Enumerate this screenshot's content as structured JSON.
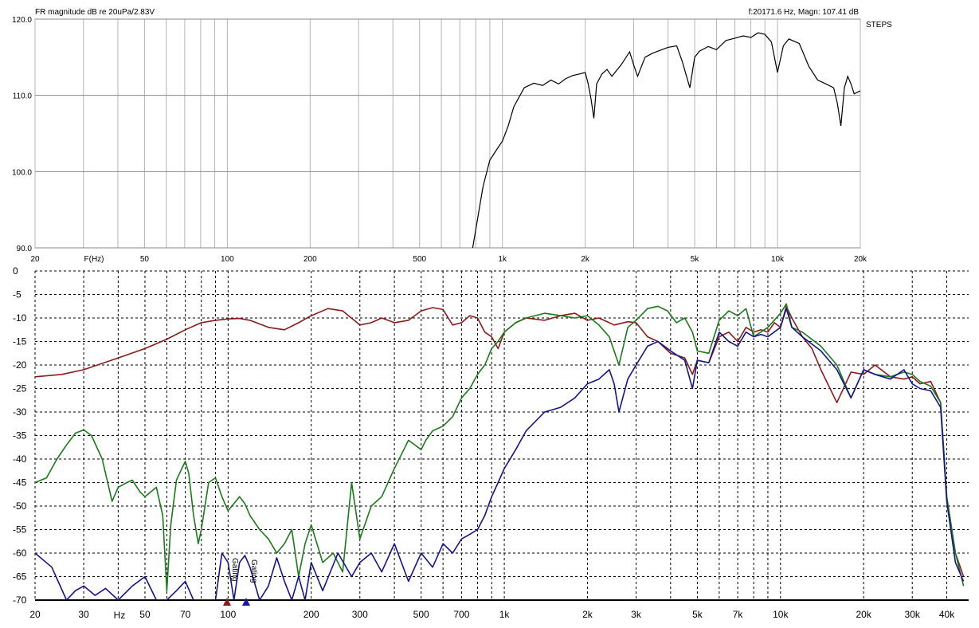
{
  "top_panel": {
    "title": "FR magnitude  dB re 20uPa/2.83V",
    "readout": "f:20171.6 Hz, Magn: 107.41 dB",
    "side_label": "STEPS",
    "x_unit_label": "F(Hz)"
  },
  "bottom_panel": {
    "x_unit_label": "Hz",
    "marker_labels": [
      "Gating",
      "Gating"
    ]
  },
  "colors": {
    "top_trace": "#000000",
    "red": "#8b1a1a",
    "green": "#1a7a1a",
    "blue": "#14148c",
    "grid_top": "#b4b4b4",
    "marker": "#1a1aa0"
  },
  "chart_data": [
    {
      "type": "line",
      "title": "FR magnitude  dB re 20uPa/2.83V",
      "xscale": "log",
      "xlim": [
        20,
        20000
      ],
      "ylim": [
        90,
        120
      ],
      "x_ticks": [
        20,
        50,
        100,
        200,
        500,
        1000,
        2000,
        5000,
        10000,
        20000
      ],
      "x_tick_labels": [
        "20",
        "50",
        "100",
        "200",
        "500",
        "1k",
        "2k",
        "5k",
        "10k",
        "20k"
      ],
      "y_ticks": [
        90,
        100,
        110,
        120
      ],
      "y_tick_labels": [
        "90.0",
        "100.0",
        "110.0",
        "120.0"
      ],
      "series": [
        {
          "color": "#000000",
          "x": [
            780,
            850,
            900,
            950,
            1000,
            1050,
            1100,
            1200,
            1300,
            1400,
            1500,
            1600,
            1700,
            1800,
            1900,
            2000,
            2050,
            2100,
            2150,
            2200,
            2300,
            2400,
            2500,
            2700,
            2900,
            3000,
            3100,
            3300,
            3500,
            3800,
            4000,
            4300,
            4500,
            4800,
            5000,
            5200,
            5600,
            6000,
            6500,
            7000,
            7500,
            8000,
            8500,
            9000,
            9500,
            10000,
            10500,
            11000,
            12000,
            13000,
            14000,
            15000,
            16000,
            16500,
            17000,
            17500,
            18000,
            18500,
            19000,
            20000
          ],
          "y": [
            90.0,
            98.0,
            101.5,
            102.8,
            104.0,
            106.0,
            108.5,
            111.0,
            111.6,
            111.3,
            112.0,
            111.5,
            112.2,
            112.6,
            112.8,
            113.0,
            111.5,
            109.5,
            107.0,
            111.5,
            112.8,
            113.4,
            112.5,
            114.0,
            115.7,
            114.0,
            112.5,
            115.0,
            115.5,
            116.0,
            116.3,
            116.5,
            114.5,
            111.0,
            115.0,
            115.8,
            116.4,
            116.0,
            117.2,
            117.5,
            117.8,
            117.6,
            118.2,
            118.0,
            117.0,
            113.0,
            116.5,
            117.4,
            116.8,
            113.8,
            112.0,
            111.5,
            111.0,
            109.0,
            106.0,
            111.0,
            112.5,
            111.5,
            110.2,
            110.6
          ]
        }
      ]
    },
    {
      "type": "line",
      "xscale": "log",
      "xlim": [
        20,
        48000
      ],
      "ylim": [
        -70,
        0
      ],
      "x_ticks": [
        20,
        30,
        50,
        70,
        100,
        200,
        300,
        500,
        700,
        1000,
        2000,
        3000,
        5000,
        7000,
        10000,
        20000,
        30000,
        40000
      ],
      "x_tick_labels": [
        "20",
        "30",
        "50",
        "70",
        "100",
        "200",
        "300",
        "500",
        "700",
        "1k",
        "2k",
        "3k",
        "5k",
        "7k",
        "10k",
        "20k",
        "30k",
        "40k"
      ],
      "y_ticks": [
        0,
        -5,
        -10,
        -15,
        -20,
        -25,
        -30,
        -35,
        -40,
        -45,
        -50,
        -55,
        -60,
        -65,
        -70
      ],
      "y_tick_labels": [
        "0",
        "-5",
        "-10",
        "-15",
        "-20",
        "-25",
        "-30",
        "-35",
        "-40",
        "-45",
        "-50",
        "-55",
        "-60",
        "-65",
        "-70"
      ],
      "series": [
        {
          "color": "#8b1a1a",
          "x": [
            20,
            25,
            30,
            40,
            50,
            60,
            70,
            80,
            90,
            100,
            110,
            120,
            140,
            160,
            180,
            200,
            230,
            260,
            300,
            330,
            360,
            400,
            450,
            500,
            550,
            600,
            650,
            700,
            750,
            800,
            850,
            900,
            950,
            1000,
            1100,
            1200,
            1400,
            1600,
            1800,
            2000,
            2200,
            2500,
            2800,
            3000,
            3300,
            3600,
            4000,
            4500,
            4800,
            5000,
            5500,
            6000,
            6500,
            7000,
            7500,
            8000,
            8500,
            9000,
            9500,
            10000,
            10500,
            11000,
            12000,
            13000,
            14000,
            16000,
            18000,
            20000,
            22000,
            25000,
            28000,
            30000,
            32000,
            35000,
            38000,
            40000,
            43000,
            46000
          ],
          "y": [
            -22.5,
            -22.0,
            -21.0,
            -18.5,
            -16.5,
            -14.5,
            -12.5,
            -11.0,
            -10.5,
            -10.2,
            -10.1,
            -10.5,
            -12.0,
            -12.5,
            -11.0,
            -9.5,
            -8.0,
            -8.5,
            -11.5,
            -11.0,
            -10.0,
            -11.0,
            -10.5,
            -8.5,
            -7.8,
            -8.2,
            -11.5,
            -11.0,
            -9.5,
            -10.0,
            -13.0,
            -14.0,
            -16.5,
            -13.0,
            -11.0,
            -10.0,
            -10.5,
            -9.5,
            -9.0,
            -10.5,
            -10.0,
            -11.5,
            -10.8,
            -11.0,
            -14.0,
            -15.0,
            -17.5,
            -18.5,
            -22.0,
            -19.0,
            -19.5,
            -14.0,
            -13.0,
            -15.0,
            -12.0,
            -13.0,
            -12.5,
            -13.0,
            -11.0,
            -12.0,
            -7.5,
            -10.0,
            -14.0,
            -16.5,
            -21.0,
            -28.0,
            -21.5,
            -22.0,
            -20.0,
            -22.5,
            -23.0,
            -22.5,
            -24.0,
            -23.5,
            -28.0,
            -48.0,
            -60.0,
            -65.0
          ]
        },
        {
          "color": "#1a7a1a",
          "x": [
            20,
            22,
            24,
            26,
            28,
            30,
            32,
            35,
            38,
            40,
            43,
            45,
            48,
            50,
            55,
            58,
            60,
            62,
            65,
            68,
            70,
            72,
            75,
            78,
            80,
            85,
            90,
            95,
            100,
            110,
            115,
            120,
            130,
            140,
            150,
            160,
            170,
            180,
            190,
            200,
            220,
            240,
            260,
            280,
            300,
            330,
            360,
            400,
            450,
            500,
            520,
            550,
            600,
            650,
            700,
            750,
            800,
            850,
            900,
            950,
            1000,
            1100,
            1200,
            1400,
            1600,
            1800,
            2000,
            2200,
            2400,
            2600,
            2800,
            3000,
            3300,
            3600,
            3900,
            4200,
            4500,
            4800,
            5000,
            5500,
            6000,
            6500,
            7000,
            7500,
            8000,
            9000,
            10000,
            10500,
            11000,
            12000,
            14000,
            16000,
            18000,
            20000,
            22000,
            25000,
            28000,
            30000,
            32000,
            35000,
            38000,
            40000,
            43000,
            46000
          ],
          "y": [
            -45.0,
            -44.0,
            -40.0,
            -37.0,
            -34.5,
            -33.8,
            -35.0,
            -40.0,
            -49.0,
            -46.0,
            -45.0,
            -44.5,
            -47.0,
            -48.0,
            -46.0,
            -52.0,
            -68.0,
            -54.0,
            -44.5,
            -42.0,
            -40.5,
            -43.0,
            -52.0,
            -58.0,
            -55.0,
            -45.0,
            -44.0,
            -48.0,
            -51.0,
            -48.0,
            -49.5,
            -52.0,
            -55.0,
            -57.0,
            -60.0,
            -58.0,
            -55.0,
            -65.0,
            -58.0,
            -54.0,
            -62.0,
            -60.0,
            -64.0,
            -45.0,
            -57.0,
            -50.0,
            -48.0,
            -42.0,
            -36.0,
            -38.0,
            -36.0,
            -34.0,
            -33.0,
            -31.0,
            -27.0,
            -25.0,
            -22.0,
            -20.0,
            -16.5,
            -15.0,
            -13.0,
            -11.0,
            -10.0,
            -9.0,
            -9.5,
            -10.0,
            -9.5,
            -11.5,
            -14.0,
            -20.0,
            -12.0,
            -10.5,
            -8.0,
            -7.5,
            -8.5,
            -11.0,
            -10.0,
            -13.0,
            -17.0,
            -17.5,
            -10.5,
            -8.5,
            -9.5,
            -8.0,
            -14.0,
            -12.0,
            -9.0,
            -7.0,
            -12.0,
            -13.0,
            -16.0,
            -20.0,
            -27.0,
            -21.0,
            -22.0,
            -22.5,
            -21.5,
            -22.0,
            -23.5,
            -24.5,
            -28.0,
            -48.0,
            -60.0,
            -67.0
          ]
        },
        {
          "color": "#14148c",
          "x": [
            20,
            23,
            26,
            28,
            30,
            33,
            36,
            40,
            45,
            50,
            55,
            60,
            65,
            70,
            75,
            80,
            90,
            95,
            100,
            105,
            110,
            115,
            120,
            130,
            140,
            150,
            160,
            170,
            180,
            190,
            200,
            220,
            250,
            280,
            300,
            330,
            360,
            400,
            450,
            500,
            550,
            600,
            650,
            700,
            750,
            800,
            850,
            900,
            950,
            1000,
            1100,
            1200,
            1400,
            1600,
            1800,
            2000,
            2200,
            2400,
            2500,
            2600,
            2800,
            3000,
            3300,
            3600,
            4000,
            4500,
            4800,
            5000,
            5500,
            6000,
            6500,
            7000,
            7500,
            8000,
            8500,
            9000,
            10000,
            10500,
            11000,
            12000,
            14000,
            16000,
            18000,
            20000,
            22000,
            25000,
            28000,
            30000,
            32000,
            35000,
            38000,
            40000,
            43000,
            46000
          ],
          "y": [
            -60.0,
            -63.0,
            -70.0,
            -68.0,
            -67.0,
            -69.0,
            -67.5,
            -70.0,
            -67.0,
            -65.0,
            -70.0,
            -70.0,
            -68.0,
            -66.0,
            -70.0,
            -70.0,
            -70.0,
            -60.0,
            -62.0,
            -70.0,
            -62.0,
            -60.5,
            -63.0,
            -70.0,
            -67.0,
            -61.0,
            -66.0,
            -70.0,
            -65.0,
            -70.0,
            -62.0,
            -68.0,
            -60.0,
            -65.0,
            -62.0,
            -60.0,
            -64.0,
            -58.0,
            -66.0,
            -60.0,
            -63.0,
            -58.0,
            -60.0,
            -57.0,
            -56.0,
            -55.0,
            -52.0,
            -48.0,
            -45.0,
            -42.0,
            -38.0,
            -34.0,
            -30.0,
            -29.0,
            -27.0,
            -24.0,
            -23.0,
            -21.0,
            -24.0,
            -30.0,
            -23.0,
            -20.0,
            -16.0,
            -15.0,
            -17.0,
            -19.0,
            -25.0,
            -19.0,
            -19.5,
            -13.0,
            -15.0,
            -16.0,
            -13.0,
            -14.0,
            -13.5,
            -14.0,
            -12.0,
            -8.0,
            -12.0,
            -14.0,
            -17.0,
            -21.0,
            -27.0,
            -21.0,
            -22.0,
            -23.0,
            -21.0,
            -24.0,
            -25.0,
            -25.5,
            -29.0,
            -49.0,
            -62.0,
            -66.0
          ]
        }
      ]
    }
  ]
}
